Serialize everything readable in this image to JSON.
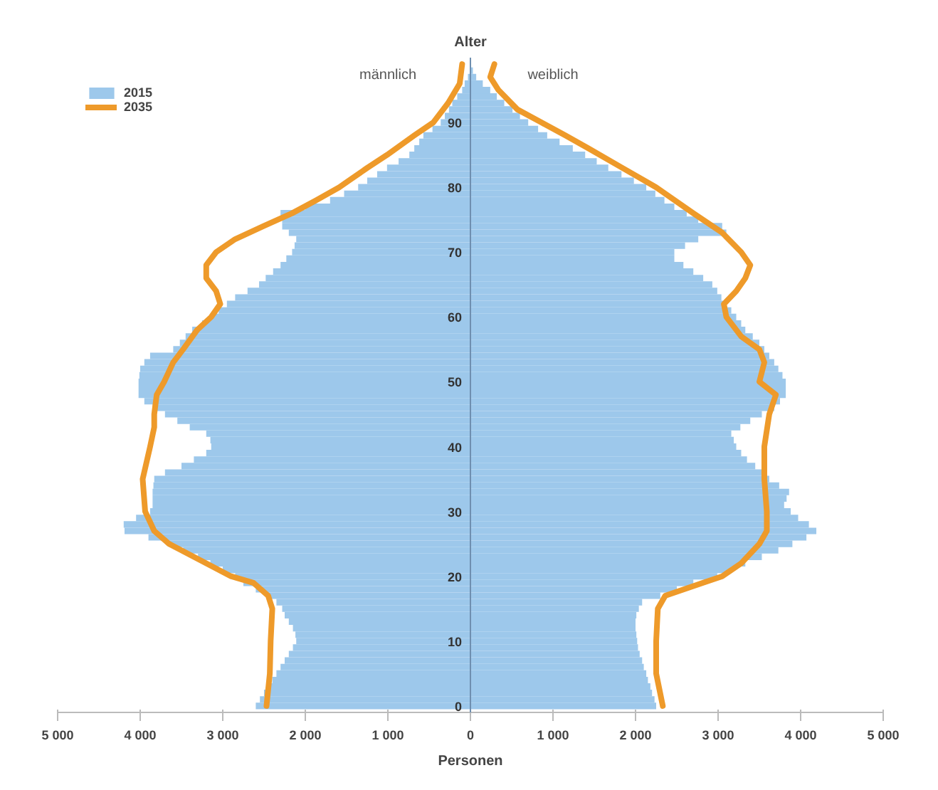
{
  "chart_data": {
    "type": "bar",
    "orientation": "horizontal",
    "xlabel": "Personen",
    "ylabel": "Alter",
    "annotations": [
      "männlich",
      "weiblich"
    ],
    "x": [
      0,
      1,
      2,
      3,
      4,
      5,
      6,
      7,
      8,
      9,
      10,
      11,
      12,
      13,
      14,
      15,
      16,
      17,
      18,
      19,
      20,
      21,
      22,
      23,
      24,
      25,
      26,
      27,
      28,
      29,
      30,
      31,
      32,
      33,
      34,
      35,
      36,
      37,
      38,
      39,
      40,
      41,
      42,
      43,
      44,
      45,
      46,
      47,
      48,
      49,
      50,
      51,
      52,
      53,
      54,
      55,
      56,
      57,
      58,
      59,
      60,
      61,
      62,
      63,
      64,
      65,
      66,
      67,
      68,
      69,
      70,
      71,
      72,
      73,
      74,
      75,
      76,
      77,
      78,
      79,
      80,
      81,
      82,
      83,
      84,
      85,
      86,
      87,
      88,
      89,
      90,
      91,
      92,
      93,
      94,
      95,
      96,
      97,
      98,
      99
    ],
    "xlim": [
      -5000,
      5000
    ],
    "xticks": [
      {
        "value": -5000,
        "label": "5 000"
      },
      {
        "value": -4000,
        "label": "4 000"
      },
      {
        "value": -3000,
        "label": "3 000"
      },
      {
        "value": -2000,
        "label": "2 000"
      },
      {
        "value": -1000,
        "label": "1 000"
      },
      0,
      {
        "value": 1000,
        "label": "1 000"
      },
      {
        "value": 2000,
        "label": "2 000"
      },
      {
        "value": 3000,
        "label": "3 000"
      },
      {
        "value": 4000,
        "label": "4 000"
      },
      {
        "value": 5000,
        "label": "5 000"
      }
    ],
    "ylim": [
      -1,
      100
    ],
    "yticks": [
      0,
      10,
      20,
      30,
      40,
      50,
      60,
      70,
      80,
      90
    ],
    "legend": "top left",
    "stacked": true,
    "series": [
      {
        "name": "2015",
        "color": "#9dc8eb",
        "values": [
          -2600,
          -2550,
          -2500,
          -2450,
          -2400,
          -2350,
          -2300,
          -2250,
          -2200,
          -2150,
          -2110,
          -2120,
          -2150,
          -2200,
          -2250,
          -2280,
          -2350,
          -2450,
          -2600,
          -2750,
          -2850,
          -3000,
          -3150,
          -3300,
          -3480,
          -3650,
          -3900,
          -4190,
          -4200,
          -4050,
          -3880,
          -3850,
          -3850,
          -3850,
          -3840,
          -3830,
          -3700,
          -3500,
          -3350,
          -3200,
          -3140,
          -3150,
          -3200,
          -3400,
          -3550,
          -3700,
          -3850,
          -3950,
          -4020,
          -4020,
          -4020,
          -4010,
          -4000,
          -3950,
          -3880,
          -3600,
          -3520,
          -3450,
          -3370,
          -3250,
          -3150,
          -3050,
          -2950,
          -2850,
          -2700,
          -2560,
          -2480,
          -2390,
          -2300,
          -2230,
          -2160,
          -2130,
          -2110,
          -2200,
          -2280,
          -2280,
          -2300,
          -2000,
          -1700,
          -1530,
          -1360,
          -1250,
          -1130,
          -1010,
          -870,
          -740,
          -680,
          -620,
          -570,
          -460,
          -360,
          -310,
          -260,
          -220,
          -160,
          -100,
          -70,
          -30,
          null,
          0
        ]
      },
      {
        "color": "#9dc8eb",
        "values": [
          2250,
          2230,
          2200,
          2180,
          2150,
          2130,
          2100,
          2080,
          2050,
          2030,
          2020,
          2010,
          2000,
          2000,
          2010,
          2040,
          2080,
          2300,
          2500,
          2700,
          2990,
          3160,
          3330,
          3530,
          3730,
          3900,
          4070,
          4190,
          4100,
          3970,
          3880,
          3800,
          3830,
          3860,
          3740,
          3620,
          3530,
          3450,
          3350,
          3280,
          3220,
          3190,
          3160,
          3270,
          3390,
          3530,
          3680,
          3750,
          3820,
          3820,
          3820,
          3780,
          3730,
          3680,
          3620,
          3560,
          3500,
          3420,
          3330,
          3280,
          3220,
          3160,
          3100,
          3040,
          2990,
          2930,
          2820,
          2700,
          2580,
          2470,
          2470,
          2600,
          2760,
          3100,
          3050,
          2760,
          2620,
          2470,
          2350,
          2240,
          2130,
          1980,
          1830,
          1670,
          1530,
          1390,
          1240,
          1080,
          930,
          820,
          700,
          600,
          510,
          410,
          320,
          240,
          150,
          70,
          30,
          0
        ]
      },
      {
        "name": "2035",
        "type": "line",
        "color": "#ee9a2a",
        "x": [
          0,
          5,
          10,
          15,
          17,
          19,
          20,
          22,
          25,
          27,
          30,
          35,
          40,
          43,
          45,
          48,
          50,
          53,
          55,
          58,
          60,
          62,
          64,
          66,
          68,
          70,
          72,
          74,
          76,
          78,
          80,
          83,
          85,
          88,
          90,
          93,
          96,
          99
        ],
        "values": [
          -2470,
          -2430,
          -2420,
          -2400,
          -2450,
          -2630,
          -2900,
          -3200,
          -3650,
          -3830,
          -3940,
          -3970,
          -3880,
          -3830,
          -3830,
          -3800,
          -3710,
          -3600,
          -3480,
          -3310,
          -3140,
          -3030,
          -3080,
          -3200,
          -3200,
          -3080,
          -2850,
          -2510,
          -2160,
          -1870,
          -1590,
          -1250,
          -1010,
          -680,
          -450,
          -270,
          -130,
          -100
        ]
      },
      {
        "type": "line",
        "color": "#ee9a2a",
        "x": [
          0,
          5,
          10,
          15,
          17,
          19,
          20,
          22,
          25,
          27,
          30,
          35,
          40,
          45,
          48,
          50,
          53,
          55,
          57,
          60,
          62,
          64,
          66,
          68,
          70,
          73,
          76,
          80,
          83,
          86,
          88,
          90,
          92,
          95,
          97,
          99
        ],
        "values": [
          2330,
          2250,
          2250,
          2270,
          2360,
          2820,
          3050,
          3280,
          3500,
          3590,
          3590,
          3560,
          3560,
          3620,
          3700,
          3500,
          3560,
          3500,
          3280,
          3100,
          3070,
          3220,
          3330,
          3390,
          3280,
          3050,
          2700,
          2250,
          1840,
          1430,
          1150,
          860,
          570,
          340,
          240,
          290
        ]
      }
    ]
  }
}
